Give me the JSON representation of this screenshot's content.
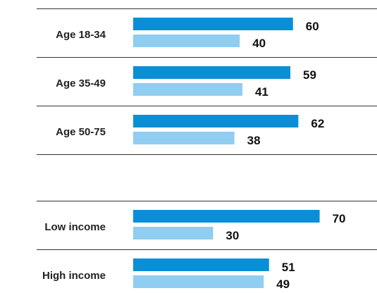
{
  "chart_data": {
    "type": "bar",
    "orientation": "horizontal",
    "groups": [
      {
        "categories": [
          "Age 18-34",
          "Age 35-49",
          "Age 50-75"
        ],
        "series": [
          {
            "values": [
              60,
              59,
              62
            ]
          },
          {
            "values": [
              40,
              41,
              38
            ]
          }
        ]
      },
      {
        "categories": [
          "Low income",
          "High income"
        ],
        "series": [
          {
            "values": [
              70,
              51
            ]
          },
          {
            "values": [
              30,
              49
            ]
          }
        ]
      }
    ],
    "colors": [
      "#0a8fd6",
      "#8fcdf1"
    ],
    "grid": false,
    "legend": "none"
  }
}
